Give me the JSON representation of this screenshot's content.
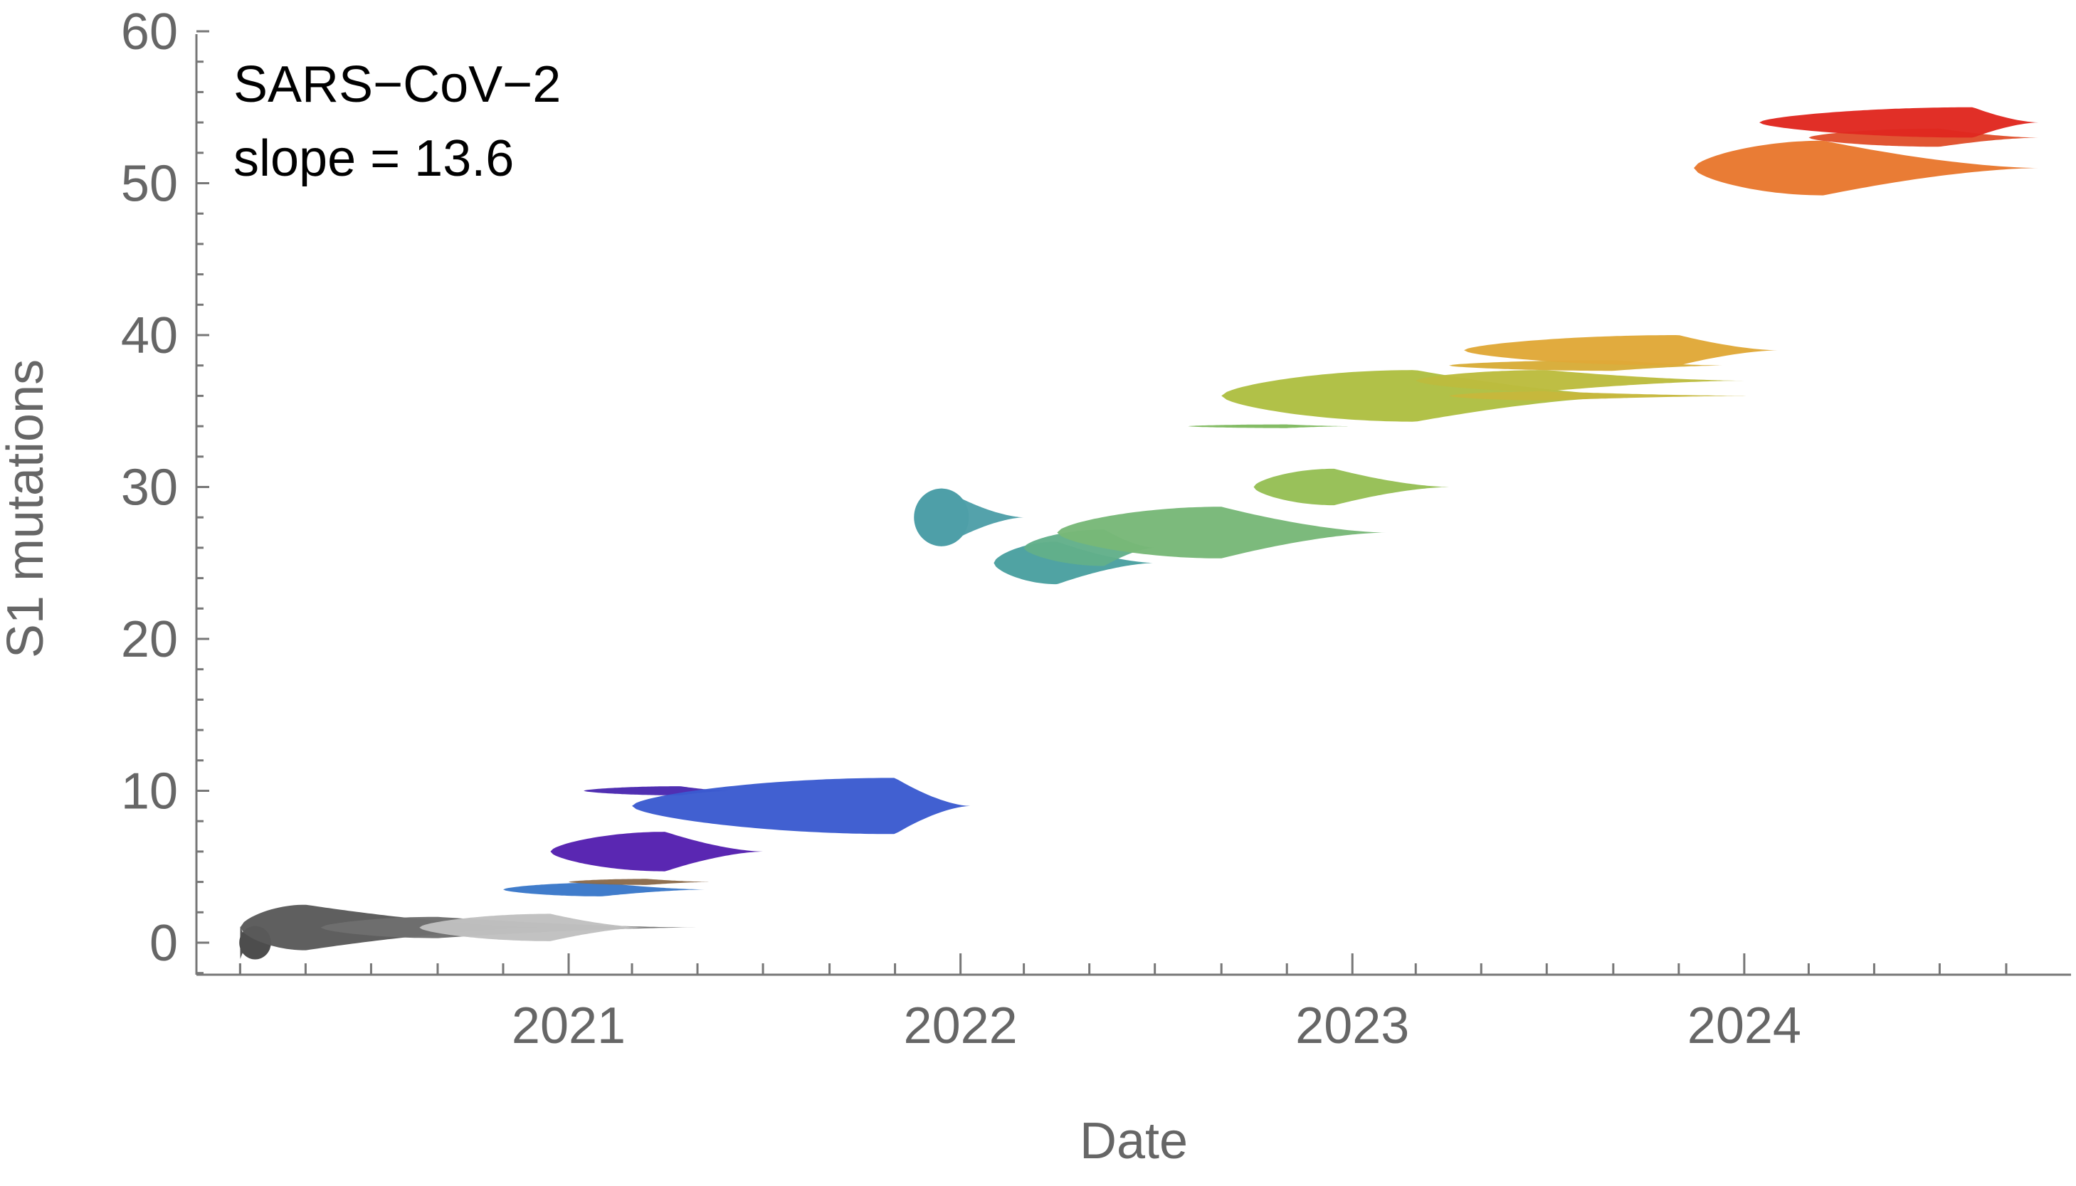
{
  "chart_data": {
    "type": "violin-timeline",
    "title": "",
    "xlabel": "Date",
    "ylabel": "S1 mutations",
    "annotation": {
      "line1": "SARS−CoV−2",
      "line2": "slope = 13.6"
    },
    "xlim": [
      "2020-01-25",
      "2024-12-20"
    ],
    "ylim": [
      -2,
      60
    ],
    "y_ticks": [
      0,
      10,
      20,
      30,
      40,
      50,
      60
    ],
    "x_ticks": [
      {
        "date": "2021-01-01",
        "label": "2021"
      },
      {
        "date": "2022-01-01",
        "label": "2022"
      },
      {
        "date": "2023-01-01",
        "label": "2023"
      },
      {
        "date": "2024-01-01",
        "label": "2024"
      }
    ],
    "grid": false,
    "legend": "none",
    "series": [
      {
        "y": 0,
        "color": "#4d4d4d",
        "start": "2020-03-01",
        "peak": "2020-03-01",
        "end": "2020-03-10",
        "max": 1.1
      },
      {
        "y": 1,
        "color": "#5a5a5a",
        "start": "2020-03-01",
        "peak": "2020-05-01",
        "end": "2020-12-15",
        "max": 1.5
      },
      {
        "y": 1,
        "color": "#6e6e6e",
        "start": "2020-05-15",
        "peak": "2020-09-01",
        "end": "2021-04-30",
        "max": 0.7
      },
      {
        "y": 1,
        "color": "#c0c0c0",
        "start": "2020-08-15",
        "peak": "2020-12-15",
        "end": "2021-03-15",
        "max": 0.9
      },
      {
        "y": 3.5,
        "color": "#3a78c9",
        "start": "2020-11-01",
        "peak": "2021-02-01",
        "end": "2021-05-10",
        "max": 0.45
      },
      {
        "y": 4,
        "color": "#8a6a4a",
        "start": "2021-01-01",
        "peak": "2021-03-15",
        "end": "2021-05-15",
        "max": 0.2
      },
      {
        "y": 6,
        "color": "#5520b0",
        "start": "2020-12-15",
        "peak": "2021-04-01",
        "end": "2021-07-01",
        "max": 1.3
      },
      {
        "y": 10,
        "color": "#4a28b0",
        "start": "2021-01-15",
        "peak": "2021-04-15",
        "end": "2021-06-01",
        "max": 0.3
      },
      {
        "y": 9,
        "color": "#3b5bd0",
        "start": "2021-03-01",
        "peak": "2021-11-01",
        "end": "2022-01-10",
        "max": 1.85
      },
      {
        "y": 28,
        "color": "#4e9fa8",
        "start": "2021-11-20",
        "peak": "2021-12-15",
        "end": "2022-03-01",
        "max": 1.9
      },
      {
        "y": 25,
        "color": "#4aa0a0",
        "start": "2022-02-01",
        "peak": "2022-04-01",
        "end": "2022-07-01",
        "max": 1.4
      },
      {
        "y": 26,
        "color": "#62b08a",
        "start": "2022-03-01",
        "peak": "2022-05-15",
        "end": "2022-07-01",
        "max": 1.2
      },
      {
        "y": 27,
        "color": "#78b878",
        "start": "2022-04-01",
        "peak": "2022-09-01",
        "end": "2023-02-01",
        "max": 1.7
      },
      {
        "y": 30,
        "color": "#96bf55",
        "start": "2022-10-01",
        "peak": "2022-12-15",
        "end": "2023-04-01",
        "max": 1.2
      },
      {
        "y": 34,
        "color": "#80ba60",
        "start": "2022-08-01",
        "peak": "2022-11-01",
        "end": "2023-01-01",
        "max": 0.12
      },
      {
        "y": 36,
        "color": "#aebf42",
        "start": "2022-09-01",
        "peak": "2023-03-01",
        "end": "2023-10-01",
        "max": 1.7
      },
      {
        "y": 37,
        "color": "#bcbc3e",
        "start": "2023-03-01",
        "peak": "2023-07-01",
        "end": "2024-01-01",
        "max": 0.7
      },
      {
        "y": 36,
        "color": "#c6b83c",
        "start": "2023-04-01",
        "peak": "2023-07-01",
        "end": "2024-01-10",
        "max": 0.3
      },
      {
        "y": 38,
        "color": "#d8ac38",
        "start": "2023-04-01",
        "peak": "2023-09-01",
        "end": "2023-12-15",
        "max": 0.35
      },
      {
        "y": 39,
        "color": "#e0a838",
        "start": "2023-04-15",
        "peak": "2023-11-01",
        "end": "2024-02-01",
        "max": 1.0
      },
      {
        "y": 51,
        "color": "#e8782e",
        "start": "2023-11-15",
        "peak": "2024-03-15",
        "end": "2024-10-01",
        "max": 1.8
      },
      {
        "y": 53,
        "color": "#e0502c",
        "start": "2024-03-01",
        "peak": "2024-07-01",
        "end": "2024-10-01",
        "max": 0.6
      },
      {
        "y": 54,
        "color": "#e02820",
        "start": "2024-01-15",
        "peak": "2024-08-01",
        "end": "2024-10-01",
        "max": 1.0
      }
    ]
  }
}
